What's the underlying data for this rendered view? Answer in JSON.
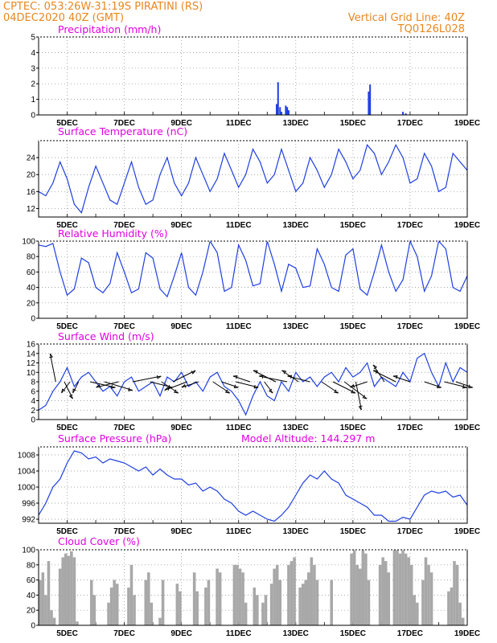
{
  "header": {
    "line1_left": "CPTEC:  053:26W-31:19S   PIRATINI (RS)",
    "line2_left": "04DEC2020 40Z (GMT)",
    "line2_right": "Vertical Grid Line: 40Z",
    "line3_right": "TQ0126L028"
  },
  "colors": {
    "header": "#e8871e",
    "titles": "#e000e0",
    "series": "#1f3fe0",
    "cloud": "#a8a8a8",
    "wind": "#000000"
  },
  "x_tick_labels": [
    "5DEC",
    "7DEC",
    "9DEC",
    "11DEC",
    "13DEC",
    "15DEC",
    "17DEC",
    "19DEC"
  ],
  "chart_data": [
    {
      "type": "bar",
      "title": "Precipitation (mm/h)",
      "ylim": [
        0,
        5
      ],
      "yticks": [
        0,
        1,
        2,
        3,
        4,
        5
      ],
      "x_days": [
        12.33,
        12.38,
        12.45,
        12.5,
        12.65,
        12.7,
        12.75,
        15.55,
        15.6,
        16.75,
        16.85
      ],
      "values": [
        0.7,
        2.1,
        0.5,
        0.2,
        0.6,
        0.5,
        0.3,
        1.5,
        1.95,
        0.2,
        0.1
      ]
    },
    {
      "type": "line",
      "title": "Surface Temperature (nC)",
      "ylim": [
        10,
        28
      ],
      "yticks": [
        12,
        16,
        20,
        24
      ],
      "x_days": [
        4,
        4.25,
        4.5,
        4.75,
        5,
        5.25,
        5.5,
        5.75,
        6,
        6.25,
        6.5,
        6.75,
        7,
        7.25,
        7.5,
        7.75,
        8,
        8.25,
        8.5,
        8.75,
        9,
        9.25,
        9.5,
        9.75,
        10,
        10.25,
        10.5,
        10.75,
        11,
        11.25,
        11.5,
        11.75,
        12,
        12.25,
        12.5,
        12.75,
        13,
        13.25,
        13.5,
        13.75,
        14,
        14.25,
        14.5,
        14.75,
        15,
        15.25,
        15.5,
        15.75,
        16,
        16.25,
        16.5,
        16.75,
        17,
        17.25,
        17.5,
        17.75,
        18,
        18.25,
        18.5,
        18.75,
        19
      ],
      "values": [
        16,
        15,
        18,
        23,
        19,
        13,
        11,
        17,
        22,
        18,
        14,
        13,
        18,
        23,
        17,
        13,
        14,
        20,
        24,
        18,
        15,
        18,
        24,
        20,
        16,
        19,
        25,
        21,
        17,
        20,
        26,
        23,
        18,
        20,
        26,
        21,
        16,
        18,
        24,
        21,
        17,
        20,
        26,
        23,
        19,
        21,
        27,
        25,
        20,
        23,
        27,
        24,
        18,
        19,
        25,
        22,
        16,
        17,
        25,
        23,
        21
      ]
    },
    {
      "type": "line",
      "title": "Relative Humidity (%)",
      "ylim": [
        0,
        100
      ],
      "yticks": [
        0,
        20,
        40,
        60,
        80,
        100
      ],
      "x_days": [
        4,
        4.25,
        4.5,
        4.75,
        5,
        5.25,
        5.5,
        5.75,
        6,
        6.25,
        6.5,
        6.75,
        7,
        7.25,
        7.5,
        7.75,
        8,
        8.25,
        8.5,
        8.75,
        9,
        9.25,
        9.5,
        9.75,
        10,
        10.25,
        10.5,
        10.75,
        11,
        11.25,
        11.5,
        11.75,
        12,
        12.25,
        12.5,
        12.75,
        13,
        13.25,
        13.5,
        13.75,
        14,
        14.25,
        14.5,
        14.75,
        15,
        15.25,
        15.5,
        15.75,
        16,
        16.25,
        16.5,
        16.75,
        17,
        17.25,
        17.5,
        17.75,
        18,
        18.25,
        18.5,
        18.75,
        19
      ],
      "values": [
        95,
        93,
        97,
        60,
        30,
        38,
        78,
        72,
        40,
        33,
        45,
        85,
        60,
        33,
        38,
        85,
        78,
        38,
        28,
        55,
        85,
        40,
        30,
        60,
        100,
        85,
        35,
        40,
        95,
        75,
        42,
        45,
        100,
        70,
        35,
        70,
        65,
        40,
        42,
        90,
        70,
        40,
        35,
        82,
        90,
        38,
        30,
        60,
        95,
        60,
        35,
        50,
        100,
        80,
        35,
        55,
        100,
        90,
        40,
        35,
        55
      ]
    },
    {
      "type": "line",
      "title": "Surface Wind (m/s)",
      "ylim": [
        0,
        16
      ],
      "yticks": [
        0,
        2,
        4,
        6,
        8,
        10,
        12,
        14,
        16
      ],
      "x_days": [
        4,
        4.25,
        4.5,
        4.75,
        5,
        5.25,
        5.5,
        5.75,
        6,
        6.25,
        6.5,
        6.75,
        7,
        7.25,
        7.5,
        7.75,
        8,
        8.25,
        8.5,
        8.75,
        9,
        9.25,
        9.5,
        9.75,
        10,
        10.25,
        10.5,
        10.75,
        11,
        11.25,
        11.5,
        11.75,
        12,
        12.25,
        12.5,
        12.75,
        13,
        13.25,
        13.5,
        13.75,
        14,
        14.25,
        14.5,
        14.75,
        15,
        15.25,
        15.5,
        15.75,
        16,
        16.25,
        16.5,
        16.75,
        17,
        17.25,
        17.5,
        17.75,
        18,
        18.25,
        18.5,
        18.75,
        19
      ],
      "values": [
        2,
        3,
        6,
        8,
        11,
        7,
        9,
        10,
        8,
        6,
        7,
        5,
        8,
        9,
        6,
        7,
        8,
        5,
        9,
        8,
        10,
        7,
        8,
        6,
        9,
        10,
        7,
        6,
        4,
        1,
        5,
        8,
        5,
        4,
        8,
        6,
        10,
        8,
        9,
        7,
        9,
        10,
        8,
        11,
        9,
        10,
        12,
        7,
        9,
        8,
        7,
        10,
        8,
        13,
        14,
        10,
        7,
        12,
        8,
        11,
        10
      ],
      "vectors": [
        {
          "x": 4.6,
          "u": -1,
          "v": 5
        },
        {
          "x": 4.9,
          "u": 1.5,
          "v": -3
        },
        {
          "x": 5.1,
          "u": -1.5,
          "v": -2
        },
        {
          "x": 5.4,
          "u": -1,
          "v": -2
        },
        {
          "x": 5.8,
          "u": 4.5,
          "v": -1
        },
        {
          "x": 6.3,
          "u": 5,
          "v": -1.5
        },
        {
          "x": 6.8,
          "u": -4,
          "v": -1
        },
        {
          "x": 7.3,
          "u": 5,
          "v": 1
        },
        {
          "x": 7.9,
          "u": 4,
          "v": -1
        },
        {
          "x": 8.3,
          "u": 3,
          "v": -2
        },
        {
          "x": 8.7,
          "u": 4,
          "v": 2
        },
        {
          "x": 9.2,
          "u": -4,
          "v": -1.5
        },
        {
          "x": 9.6,
          "u": -3,
          "v": -1
        },
        {
          "x": 10.1,
          "u": 3,
          "v": -2
        },
        {
          "x": 10.4,
          "u": 3,
          "v": -1
        },
        {
          "x": 10.9,
          "u": 4,
          "v": -1
        },
        {
          "x": 11.4,
          "u": -3,
          "v": 1
        },
        {
          "x": 11.9,
          "u": 1.5,
          "v": -2
        },
        {
          "x": 12.3,
          "u": -4,
          "v": 2
        },
        {
          "x": 12.7,
          "u": -5,
          "v": 1
        },
        {
          "x": 13.1,
          "u": -3,
          "v": 2
        },
        {
          "x": 13.5,
          "u": -4,
          "v": 1
        },
        {
          "x": 13.9,
          "u": 3,
          "v": -2
        },
        {
          "x": 14.3,
          "u": 4,
          "v": -2
        },
        {
          "x": 14.7,
          "u": 4,
          "v": -3
        },
        {
          "x": 15.1,
          "u": 1,
          "v": -5
        },
        {
          "x": 15.5,
          "u": -3,
          "v": -1
        },
        {
          "x": 16.1,
          "u": -2,
          "v": 3
        },
        {
          "x": 16.5,
          "u": -4,
          "v": 2
        },
        {
          "x": 17.0,
          "u": -3,
          "v": 1
        },
        {
          "x": 17.5,
          "u": 3,
          "v": -1
        },
        {
          "x": 18.2,
          "u": 4,
          "v": -1
        },
        {
          "x": 18.6,
          "u": 3,
          "v": -1
        }
      ]
    },
    {
      "type": "line",
      "title": "Surface Pressure (hPa)",
      "annotation": "Model Altitude: 144.297 m",
      "ylim": [
        991,
        1010
      ],
      "yticks": [
        992,
        996,
        1000,
        1004,
        1008
      ],
      "x_days": [
        4,
        4.25,
        4.5,
        4.75,
        5,
        5.25,
        5.5,
        5.75,
        6,
        6.25,
        6.5,
        6.75,
        7,
        7.25,
        7.5,
        7.75,
        8,
        8.25,
        8.5,
        8.75,
        9,
        9.25,
        9.5,
        9.75,
        10,
        10.25,
        10.5,
        10.75,
        11,
        11.25,
        11.5,
        11.75,
        12,
        12.25,
        12.5,
        12.75,
        13,
        13.25,
        13.5,
        13.75,
        14,
        14.25,
        14.5,
        14.75,
        15,
        15.25,
        15.5,
        15.75,
        16,
        16.25,
        16.5,
        16.75,
        17,
        17.25,
        17.5,
        17.75,
        18,
        18.25,
        18.5,
        18.75,
        19
      ],
      "values": [
        993,
        996,
        1000,
        1002,
        1006,
        1009,
        1008.5,
        1007,
        1007.5,
        1006,
        1007,
        1006.5,
        1006,
        1005,
        1004,
        1005,
        1003,
        1004.5,
        1003,
        1002,
        1002,
        1000.5,
        1001,
        999,
        1000,
        999,
        997,
        996,
        994,
        993,
        994,
        993,
        992,
        991.5,
        993,
        995,
        998,
        1001,
        1003,
        1002,
        1004,
        1002,
        1001,
        998,
        997,
        996,
        995,
        993,
        993,
        991.5,
        991.5,
        992.5,
        992,
        995,
        998,
        999,
        998.5,
        999,
        997.5,
        998,
        995.5
      ]
    },
    {
      "type": "bar",
      "title": "Cloud Cover (%)",
      "ylim": [
        0,
        100
      ],
      "yticks": [
        0,
        20,
        40,
        60,
        80,
        100
      ],
      "x_days": [
        4,
        4.1,
        4.2,
        4.3,
        4.4,
        4.5,
        4.6,
        4.7,
        4.8,
        4.9,
        5,
        5.1,
        5.2,
        5.3,
        5.4,
        5.5,
        5.6,
        5.7,
        5.8,
        5.9,
        6,
        6.1,
        6.2,
        6.3,
        6.4,
        6.5,
        6.6,
        6.7,
        6.8,
        6.9,
        7,
        7.1,
        7.2,
        7.3,
        7.4,
        7.5,
        7.6,
        7.7,
        7.8,
        7.9,
        8,
        8.1,
        8.2,
        8.3,
        8.4,
        8.5,
        8.6,
        8.7,
        8.8,
        8.9,
        9,
        9.1,
        9.2,
        9.3,
        9.4,
        9.5,
        9.6,
        9.7,
        9.8,
        9.9,
        10,
        10.1,
        10.2,
        10.3,
        10.4,
        10.5,
        10.6,
        10.7,
        10.8,
        10.9,
        11,
        11.1,
        11.2,
        11.3,
        11.4,
        11.5,
        11.6,
        11.7,
        11.8,
        11.9,
        12,
        12.1,
        12.2,
        12.3,
        12.4,
        12.5,
        12.6,
        12.7,
        12.8,
        12.9,
        13,
        13.1,
        13.2,
        13.3,
        13.4,
        13.5,
        13.6,
        13.7,
        13.8,
        13.9,
        14,
        14.1,
        14.2,
        14.3,
        14.4,
        14.5,
        14.6,
        14.7,
        14.8,
        14.9,
        15,
        15.1,
        15.2,
        15.3,
        15.4,
        15.5,
        15.6,
        15.7,
        15.8,
        15.9,
        16,
        16.1,
        16.2,
        16.3,
        16.4,
        16.5,
        16.6,
        16.7,
        16.8,
        16.9,
        17,
        17.1,
        17.2,
        17.3,
        17.4,
        17.5,
        17.6,
        17.7,
        17.8,
        17.9,
        18,
        18.1,
        18.2,
        18.3,
        18.4,
        18.5,
        18.6,
        18.7,
        18.8,
        18.9
      ],
      "values": [
        60,
        70,
        40,
        85,
        20,
        10,
        0,
        75,
        90,
        95,
        92,
        98,
        90,
        5,
        0,
        0,
        0,
        0,
        60,
        40,
        0,
        0,
        0,
        0,
        30,
        50,
        60,
        55,
        0,
        0,
        0,
        50,
        80,
        40,
        0,
        0,
        0,
        60,
        70,
        30,
        0,
        0,
        10,
        60,
        0,
        0,
        0,
        0,
        55,
        45,
        0,
        0,
        0,
        0,
        70,
        45,
        0,
        0,
        50,
        60,
        0,
        0,
        75,
        70,
        0,
        0,
        0,
        0,
        80,
        80,
        75,
        70,
        30,
        0,
        0,
        50,
        40,
        0,
        30,
        40,
        0,
        55,
        75,
        80,
        60,
        0,
        0,
        80,
        85,
        90,
        0,
        50,
        55,
        60,
        70,
        90,
        80,
        60,
        0,
        0,
        0,
        0,
        60,
        0,
        0,
        0,
        0,
        0,
        0,
        95,
        100,
        80,
        75,
        100,
        95,
        60,
        0,
        0,
        0,
        80,
        90,
        85,
        70,
        0,
        100,
        100,
        95,
        100,
        95,
        90,
        80,
        40,
        30,
        0,
        60,
        90,
        80,
        70,
        0,
        0,
        0,
        0,
        0,
        45,
        50,
        85,
        80,
        30,
        10,
        0
      ]
    }
  ]
}
